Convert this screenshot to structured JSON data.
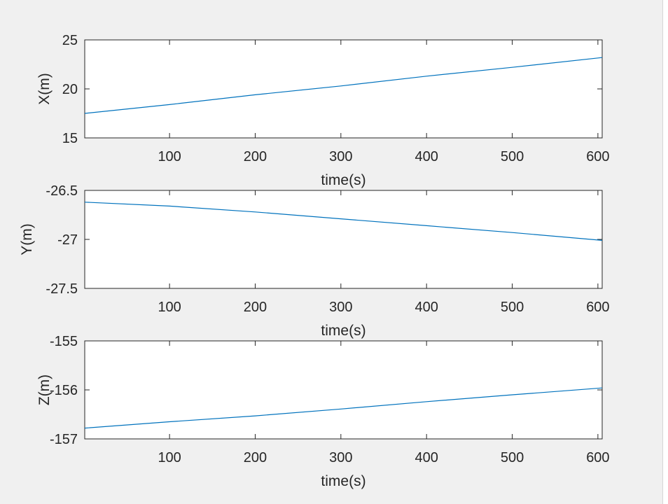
{
  "colors": {
    "figure_background": "#f0f0f0",
    "axes_background": "#ffffff",
    "axis_color": "#262626",
    "line_color": "#0072bd"
  },
  "chart_data": [
    {
      "type": "line",
      "xlabel": "time(s)",
      "ylabel": "X(m)",
      "xlim": [
        1,
        605
      ],
      "ylim": [
        15,
        25
      ],
      "xticks": [
        100,
        200,
        300,
        400,
        500,
        600
      ],
      "yticks": [
        15,
        20,
        25
      ],
      "grid": false,
      "series": [
        {
          "color": "#0072bd",
          "x": [
            1,
            100,
            200,
            300,
            400,
            500,
            605
          ],
          "y": [
            17.5,
            18.4,
            19.4,
            20.3,
            21.3,
            22.2,
            23.2
          ]
        }
      ]
    },
    {
      "type": "line",
      "xlabel": "time(s)",
      "ylabel": "Y(m)",
      "xlim": [
        1,
        605
      ],
      "ylim": [
        -27.5,
        -26.5
      ],
      "xticks": [
        100,
        200,
        300,
        400,
        500,
        600
      ],
      "yticks": [
        -27.5,
        -27,
        -26.5
      ],
      "grid": false,
      "series": [
        {
          "color": "#0072bd",
          "x": [
            1,
            100,
            200,
            300,
            400,
            500,
            605
          ],
          "y": [
            -26.62,
            -26.66,
            -26.72,
            -26.79,
            -26.86,
            -26.93,
            -27.01
          ]
        }
      ]
    },
    {
      "type": "line",
      "xlabel": "time(s)",
      "ylabel": "Z(m)",
      "xlim": [
        1,
        605
      ],
      "ylim": [
        -157,
        -155
      ],
      "xticks": [
        100,
        200,
        300,
        400,
        500,
        600
      ],
      "yticks": [
        -157,
        -156,
        -155
      ],
      "grid": false,
      "series": [
        {
          "color": "#0072bd",
          "x": [
            1,
            100,
            200,
            300,
            400,
            500,
            605
          ],
          "y": [
            -156.78,
            -156.65,
            -156.53,
            -156.39,
            -156.24,
            -156.1,
            -155.96
          ]
        }
      ]
    }
  ]
}
